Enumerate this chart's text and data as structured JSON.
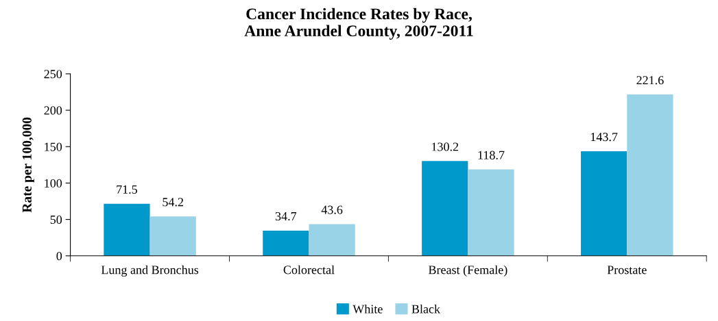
{
  "chart_data": {
    "type": "bar",
    "title": "Cancer Incidence Rates by Race,\nAnne Arundel County, 2007-2011",
    "ylabel": "Rate per 100,000",
    "categories": [
      "Lung and Bronchus",
      "Colorectal",
      "Breast (Female)",
      "Prostate"
    ],
    "series": [
      {
        "name": "White",
        "color": "#0099cc",
        "values": [
          71.5,
          34.7,
          130.2,
          143.7
        ]
      },
      {
        "name": "Black",
        "color": "#99d3e8",
        "values": [
          54.2,
          43.6,
          118.7,
          221.6
        ]
      }
    ],
    "ylim": [
      0,
      250
    ],
    "yticks": [
      0,
      50,
      100,
      150,
      200,
      250
    ],
    "data_labels": true,
    "legend": "bottom",
    "grid": false
  }
}
